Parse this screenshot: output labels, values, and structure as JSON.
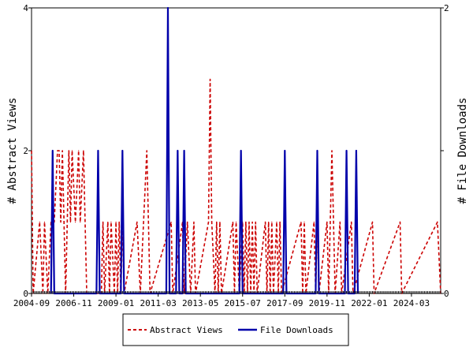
{
  "chart_data": {
    "type": "line",
    "xlabel": "",
    "ylabel": "# Abstract Views",
    "y2label": "# File Downloads",
    "x_start": "2004-09",
    "x_end": "2025-09",
    "x_tick_labels": [
      "2004-09",
      "2006-11",
      "2009-01",
      "2011-03",
      "2013-05",
      "2015-07",
      "2017-09",
      "2019-11",
      "2022-01",
      "2024-03"
    ],
    "ylim": [
      0,
      4
    ],
    "y2lim": [
      0,
      2
    ],
    "y_ticks": [
      "0",
      "2",
      "4"
    ],
    "y2_ticks": [
      "0",
      "1",
      "2"
    ],
    "legend_position": "bottom",
    "series": [
      {
        "name": "Abstract Views",
        "axis": "left",
        "color": "#cc0000",
        "style": "dashed",
        "points": [
          [
            "2004-09",
            2
          ],
          [
            "2004-10",
            0
          ],
          [
            "2005-02",
            1
          ],
          [
            "2005-04",
            0
          ],
          [
            "2005-05",
            1
          ],
          [
            "2005-07",
            0
          ],
          [
            "2005-09",
            1
          ],
          [
            "2005-11",
            1
          ],
          [
            "2006-01",
            2
          ],
          [
            "2006-02",
            2
          ],
          [
            "2006-03",
            1
          ],
          [
            "2006-04",
            2
          ],
          [
            "2006-05",
            1
          ],
          [
            "2006-06",
            0
          ],
          [
            "2006-07",
            1
          ],
          [
            "2006-08",
            2
          ],
          [
            "2006-09",
            1
          ],
          [
            "2006-10",
            2
          ],
          [
            "2006-12",
            1
          ],
          [
            "2007-02",
            2
          ],
          [
            "2007-03",
            1
          ],
          [
            "2007-05",
            2
          ],
          [
            "2007-07",
            0
          ],
          [
            "2008-04",
            0
          ],
          [
            "2008-05",
            1
          ],
          [
            "2008-06",
            0
          ],
          [
            "2008-08",
            1
          ],
          [
            "2008-09",
            0
          ],
          [
            "2008-10",
            1
          ],
          [
            "2008-12",
            0
          ],
          [
            "2009-01",
            1
          ],
          [
            "2009-02",
            0
          ],
          [
            "2009-03",
            1
          ],
          [
            "2009-04",
            0
          ],
          [
            "2009-05",
            1
          ],
          [
            "2009-06",
            0
          ],
          [
            "2010-02",
            1
          ],
          [
            "2010-04",
            0
          ],
          [
            "2010-08",
            2
          ],
          [
            "2010-10",
            0
          ],
          [
            "2011-11",
            1
          ],
          [
            "2011-12",
            0
          ],
          [
            "2012-06",
            1
          ],
          [
            "2012-07",
            0
          ],
          [
            "2012-09",
            1
          ],
          [
            "2012-11",
            0
          ],
          [
            "2013-01",
            1
          ],
          [
            "2013-02",
            0
          ],
          [
            "2013-10",
            1
          ],
          [
            "2013-11",
            3
          ],
          [
            "2013-12",
            1
          ],
          [
            "2014-02",
            0
          ],
          [
            "2014-03",
            1
          ],
          [
            "2014-04",
            0
          ],
          [
            "2014-05",
            1
          ],
          [
            "2014-06",
            0
          ],
          [
            "2015-01",
            1
          ],
          [
            "2015-02",
            0
          ],
          [
            "2015-03",
            1
          ],
          [
            "2015-05",
            0
          ],
          [
            "2015-07",
            1
          ],
          [
            "2015-08",
            0
          ],
          [
            "2015-09",
            1
          ],
          [
            "2015-10",
            0
          ],
          [
            "2015-11",
            1
          ],
          [
            "2015-12",
            0
          ],
          [
            "2016-01",
            1
          ],
          [
            "2016-02",
            0
          ],
          [
            "2016-03",
            1
          ],
          [
            "2016-04",
            0
          ],
          [
            "2016-09",
            1
          ],
          [
            "2016-10",
            0
          ],
          [
            "2016-11",
            1
          ],
          [
            "2016-12",
            0
          ],
          [
            "2017-01",
            1
          ],
          [
            "2017-02",
            0
          ],
          [
            "2017-04",
            1
          ],
          [
            "2017-05",
            0
          ],
          [
            "2017-06",
            1
          ],
          [
            "2017-07",
            0
          ],
          [
            "2018-07",
            1
          ],
          [
            "2018-08",
            0
          ],
          [
            "2018-09",
            1
          ],
          [
            "2018-10",
            0
          ],
          [
            "2019-03",
            1
          ],
          [
            "2019-04",
            0
          ],
          [
            "2019-05",
            1
          ],
          [
            "2019-06",
            0
          ],
          [
            "2019-11",
            1
          ],
          [
            "2019-12",
            0
          ],
          [
            "2020-01",
            1
          ],
          [
            "2020-02",
            2
          ],
          [
            "2020-03",
            1
          ],
          [
            "2020-04",
            0
          ],
          [
            "2020-07",
            1
          ],
          [
            "2020-08",
            0
          ],
          [
            "2021-02",
            1
          ],
          [
            "2021-03",
            0
          ],
          [
            "2022-03",
            1
          ],
          [
            "2022-04",
            0
          ],
          [
            "2023-08",
            1
          ],
          [
            "2023-09",
            0
          ],
          [
            "2025-07",
            1
          ],
          [
            "2025-09",
            0
          ]
        ]
      },
      {
        "name": "File Downloads",
        "axis": "right",
        "color": "#0000aa",
        "style": "solid",
        "points": [
          [
            "2005-09",
            0
          ],
          [
            "2005-10",
            1
          ],
          [
            "2005-11",
            0
          ],
          [
            "2008-01",
            0
          ],
          [
            "2008-02",
            1
          ],
          [
            "2008-03",
            0
          ],
          [
            "2009-04",
            0
          ],
          [
            "2009-05",
            1
          ],
          [
            "2009-06",
            0
          ],
          [
            "2011-08",
            0
          ],
          [
            "2011-09",
            2
          ],
          [
            "2011-10",
            0
          ],
          [
            "2012-02",
            0
          ],
          [
            "2012-03",
            1
          ],
          [
            "2012-04",
            0
          ],
          [
            "2012-06",
            0
          ],
          [
            "2012-07",
            1
          ],
          [
            "2012-08",
            0
          ],
          [
            "2015-05",
            0
          ],
          [
            "2015-06",
            1
          ],
          [
            "2015-07",
            0
          ],
          [
            "2017-08",
            0
          ],
          [
            "2017-09",
            1
          ],
          [
            "2017-10",
            0
          ],
          [
            "2019-04",
            0
          ],
          [
            "2019-05",
            1
          ],
          [
            "2019-06",
            0
          ],
          [
            "2020-10",
            0
          ],
          [
            "2020-11",
            1
          ],
          [
            "2020-12",
            0
          ],
          [
            "2021-04",
            0
          ],
          [
            "2021-05",
            1
          ],
          [
            "2021-06",
            0
          ]
        ]
      }
    ]
  }
}
